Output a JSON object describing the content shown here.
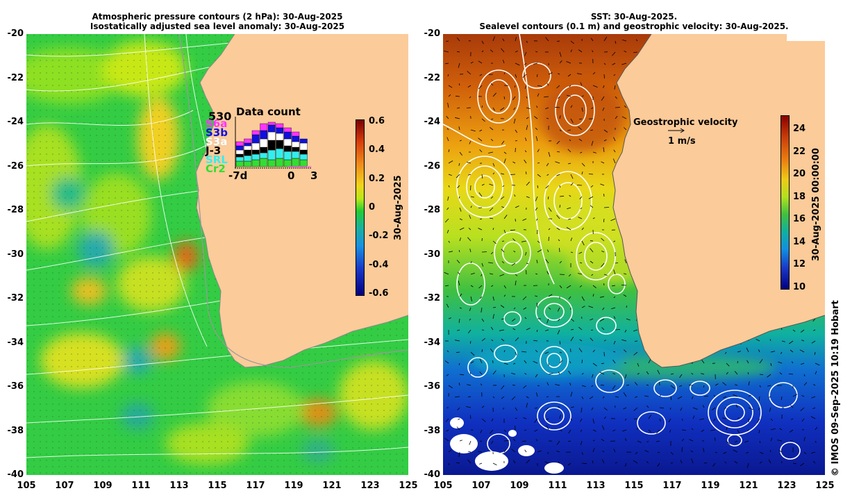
{
  "left_panel": {
    "title_line1": "Atmospheric pressure contours (2 hPa): 30-Aug-2025",
    "title_line2": "Isostatically adjusted sea level anomaly: 30-Aug-2025",
    "colorbar_ticks": [
      "0.6",
      "0.4",
      "0.2",
      "0",
      "-0.2",
      "-0.4",
      "-0.6"
    ],
    "colorbar_label": "30-Aug-2025",
    "data_count": {
      "title": "Data count",
      "max": "530",
      "satellites": [
        {
          "name": "S6a",
          "color": "#ff33ff"
        },
        {
          "name": "S3b",
          "color": "#1010e0"
        },
        {
          "name": "S3a",
          "color": "#ffffff"
        },
        {
          "name": "J-3",
          "color": "#000000"
        },
        {
          "name": "SRL",
          "color": "#33eeee"
        },
        {
          "name": "Cr2",
          "color": "#33dd33"
        }
      ],
      "axis_labels": [
        "-7d",
        "0",
        "3"
      ]
    }
  },
  "right_panel": {
    "title_line1": "SST: 30-Aug-2025.",
    "title_line2": "Sealevel contours (0.1 m) and geostrophic velocity: 30-Aug-2025.",
    "velocity_legend_title": "Geostrophic velocity",
    "velocity_legend_scale": "1 m/s",
    "colorbar_ticks": [
      "24",
      "22",
      "20",
      "18",
      "16",
      "14",
      "12",
      "10"
    ],
    "colorbar_label": "30-Aug-2025 00:00:00"
  },
  "y_ticks": [
    "-20",
    "-22",
    "-24",
    "-26",
    "-28",
    "-30",
    "-32",
    "-34",
    "-36",
    "-38",
    "-40"
  ],
  "x_ticks": [
    "105",
    "107",
    "109",
    "111",
    "113",
    "115",
    "117",
    "119",
    "121",
    "123",
    "125"
  ],
  "copyright": "© IMOS 09-Sep-2025 10:19 Hobart",
  "colors": {
    "land": "#fbcb9a",
    "anomaly_base": "#33cc33",
    "sst_warm": "#d0600a",
    "sst_cold": "#0a20c0"
  }
}
